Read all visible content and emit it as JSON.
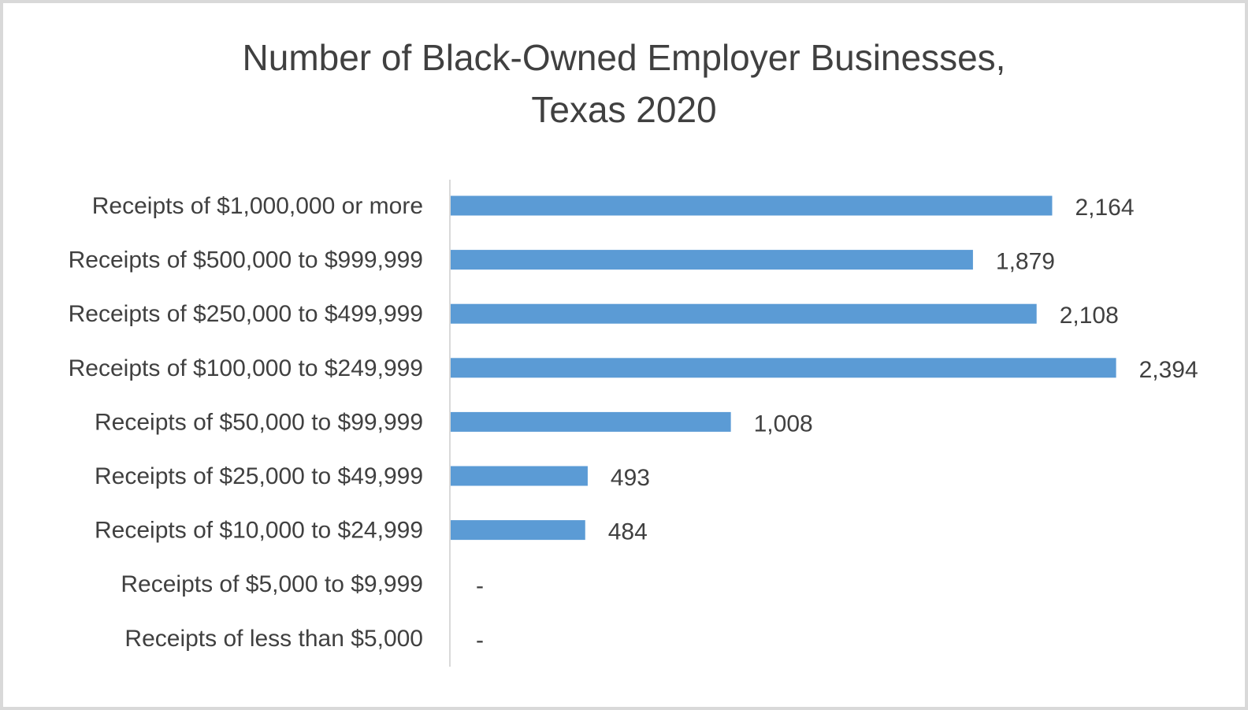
{
  "chart_data": {
    "type": "bar",
    "orientation": "horizontal",
    "title": "Number of Black-Owned Employer Businesses, Texas 2020",
    "title_lines": [
      "Number of Black-Owned Employer Businesses,",
      "Texas 2020"
    ],
    "categories": [
      "Receipts of $1,000,000 or more",
      "Receipts of $500,000 to $999,999",
      "Receipts of $250,000 to $499,999",
      "Receipts of $100,000 to $249,999",
      "Receipts of $50,000 to $99,999",
      "Receipts of $25,000 to $49,999",
      "Receipts of $10,000 to $24,999",
      "Receipts of $5,000 to $9,999",
      "Receipts of less than $5,000"
    ],
    "values": [
      2164,
      1879,
      2108,
      2394,
      1008,
      493,
      484,
      null,
      null
    ],
    "data_labels": [
      "2,164",
      "1,879",
      "2,108",
      "2,394",
      "1,008",
      "493",
      "484",
      "-",
      "-"
    ],
    "xlim": [
      0,
      2500
    ],
    "grid": false,
    "legend": "none",
    "bar_color": "#5b9bd5"
  }
}
